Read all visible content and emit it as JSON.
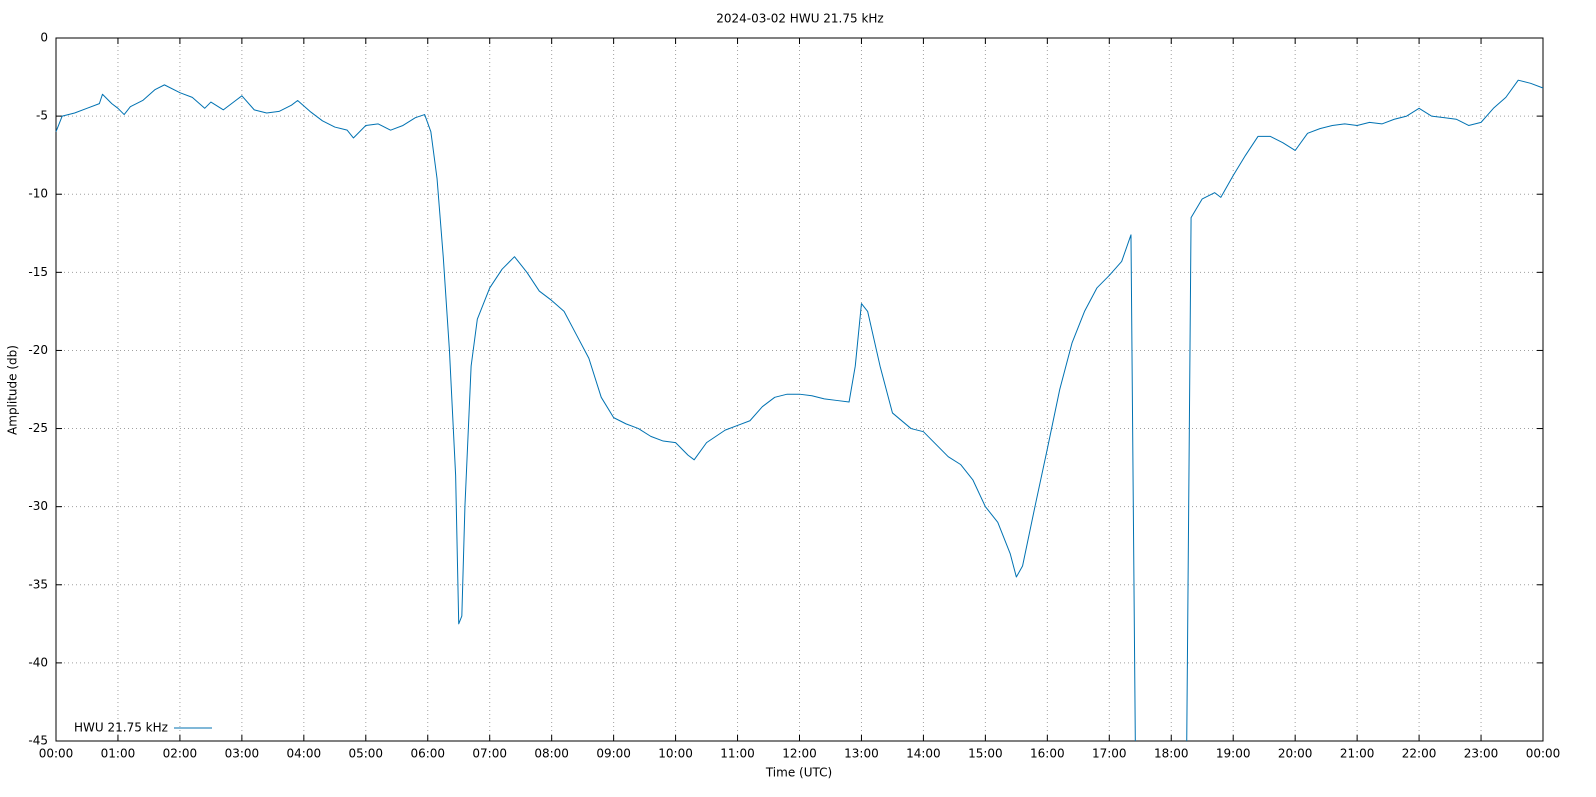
{
  "chart_data": {
    "type": "line",
    "title": "2024-03-02 HWU 21.75 kHz",
    "xlabel": "Time (UTC)",
    "ylabel": "Amplitude (db)",
    "x": [
      0,
      0.1,
      0.3,
      0.5,
      0.7,
      0.75,
      0.9,
      1.0,
      1.1,
      1.2,
      1.4,
      1.6,
      1.75,
      2.0,
      2.2,
      2.4,
      2.5,
      2.7,
      2.9,
      3.0,
      3.2,
      3.4,
      3.6,
      3.8,
      3.9,
      4.1,
      4.3,
      4.5,
      4.7,
      4.8,
      5.0,
      5.2,
      5.4,
      5.6,
      5.8,
      5.95,
      6.05,
      6.15,
      6.25,
      6.35,
      6.45,
      6.5,
      6.55,
      6.6,
      6.7,
      6.8,
      7.0,
      7.2,
      7.4,
      7.6,
      7.8,
      8.0,
      8.2,
      8.4,
      8.6,
      8.8,
      9.0,
      9.2,
      9.4,
      9.6,
      9.8,
      10.0,
      10.2,
      10.3,
      10.5,
      10.8,
      11.0,
      11.2,
      11.4,
      11.6,
      11.8,
      12.0,
      12.2,
      12.4,
      12.6,
      12.8,
      12.9,
      13.0,
      13.1,
      13.3,
      13.5,
      13.8,
      14.0,
      14.2,
      14.4,
      14.6,
      14.8,
      15.0,
      15.2,
      15.4,
      15.5,
      15.6,
      15.8,
      16.0,
      16.2,
      16.4,
      16.6,
      16.8,
      17.0,
      17.2,
      17.35,
      17.42,
      17.8,
      18.25,
      18.32,
      18.5,
      18.7,
      18.8,
      19.0,
      19.2,
      19.4,
      19.6,
      19.8,
      20.0,
      20.2,
      20.4,
      20.6,
      20.8,
      21.0,
      21.2,
      21.4,
      21.6,
      21.8,
      22.0,
      22.2,
      22.4,
      22.6,
      22.8,
      23.0,
      23.2,
      23.4,
      23.6,
      23.8,
      24.0
    ],
    "series": [
      {
        "name": "HWU 21.75 kHz",
        "color": "#0072b2",
        "values": [
          -6,
          -5.0,
          -4.8,
          -4.5,
          -4.2,
          -3.6,
          -4.2,
          -4.5,
          -4.9,
          -4.4,
          -4.0,
          -3.3,
          -3.0,
          -3.5,
          -3.8,
          -4.5,
          -4.1,
          -4.6,
          -4.0,
          -3.7,
          -4.6,
          -4.8,
          -4.7,
          -4.3,
          -4.0,
          -4.7,
          -5.3,
          -5.7,
          -5.9,
          -6.4,
          -5.6,
          -5.5,
          -5.9,
          -5.6,
          -5.1,
          -4.9,
          -6,
          -9,
          -14,
          -20,
          -28,
          -37.5,
          -37,
          -30,
          -21,
          -18,
          -16,
          -14.8,
          -14.0,
          -15.0,
          -16.2,
          -16.8,
          -17.5,
          -19.0,
          -20.5,
          -23,
          -24.3,
          -24.7,
          -25.0,
          -25.5,
          -25.8,
          -25.9,
          -26.7,
          -27.0,
          -25.9,
          -25.1,
          -24.8,
          -24.5,
          -23.6,
          -23.0,
          -22.8,
          -22.8,
          -22.9,
          -23.1,
          -23.2,
          -23.3,
          -21,
          -17,
          -17.5,
          -21,
          -24,
          -25,
          -25.2,
          -26,
          -26.8,
          -27.3,
          -28.3,
          -30,
          -31,
          -33,
          -34.5,
          -33.8,
          -30,
          -26.3,
          -22.5,
          -19.5,
          -17.5,
          -16.0,
          -15.2,
          -14.3,
          -12.6,
          -45,
          null,
          -45,
          -11.5,
          -10.3,
          -9.9,
          -10.2,
          -8.8,
          -7.5,
          -6.3,
          -6.3,
          -6.7,
          -7.2,
          -6.1,
          -5.8,
          -5.6,
          -5.5,
          -5.6,
          -5.4,
          -5.5,
          -5.2,
          -5.0,
          -4.5,
          -5.0,
          -5.1,
          -5.2,
          -5.6,
          -5.4,
          -4.5,
          -3.8,
          -2.7,
          -2.9,
          -3.2
        ]
      }
    ],
    "xlim": [
      0,
      24
    ],
    "xticks": [
      {
        "value": 0,
        "label": "00:00"
      },
      {
        "value": 1,
        "label": "01:00"
      },
      {
        "value": 2,
        "label": "02:00"
      },
      {
        "value": 3,
        "label": "03:00"
      },
      {
        "value": 4,
        "label": "04:00"
      },
      {
        "value": 5,
        "label": "05:00"
      },
      {
        "value": 6,
        "label": "06:00"
      },
      {
        "value": 7,
        "label": "07:00"
      },
      {
        "value": 8,
        "label": "08:00"
      },
      {
        "value": 9,
        "label": "09:00"
      },
      {
        "value": 10,
        "label": "10:00"
      },
      {
        "value": 11,
        "label": "11:00"
      },
      {
        "value": 12,
        "label": "12:00"
      },
      {
        "value": 13,
        "label": "13:00"
      },
      {
        "value": 14,
        "label": "14:00"
      },
      {
        "value": 15,
        "label": "15:00"
      },
      {
        "value": 16,
        "label": "16:00"
      },
      {
        "value": 17,
        "label": "17:00"
      },
      {
        "value": 18,
        "label": "18:00"
      },
      {
        "value": 19,
        "label": "19:00"
      },
      {
        "value": 20,
        "label": "20:00"
      },
      {
        "value": 21,
        "label": "21:00"
      },
      {
        "value": 22,
        "label": "22:00"
      },
      {
        "value": 23,
        "label": "23:00"
      },
      {
        "value": 24,
        "label": "00:00"
      }
    ],
    "ylim": [
      -45,
      0
    ],
    "yticks": [
      0,
      -5,
      -10,
      -15,
      -20,
      -25,
      -30,
      -35,
      -40,
      -45
    ],
    "grid": true,
    "legend": "bottom-left"
  }
}
